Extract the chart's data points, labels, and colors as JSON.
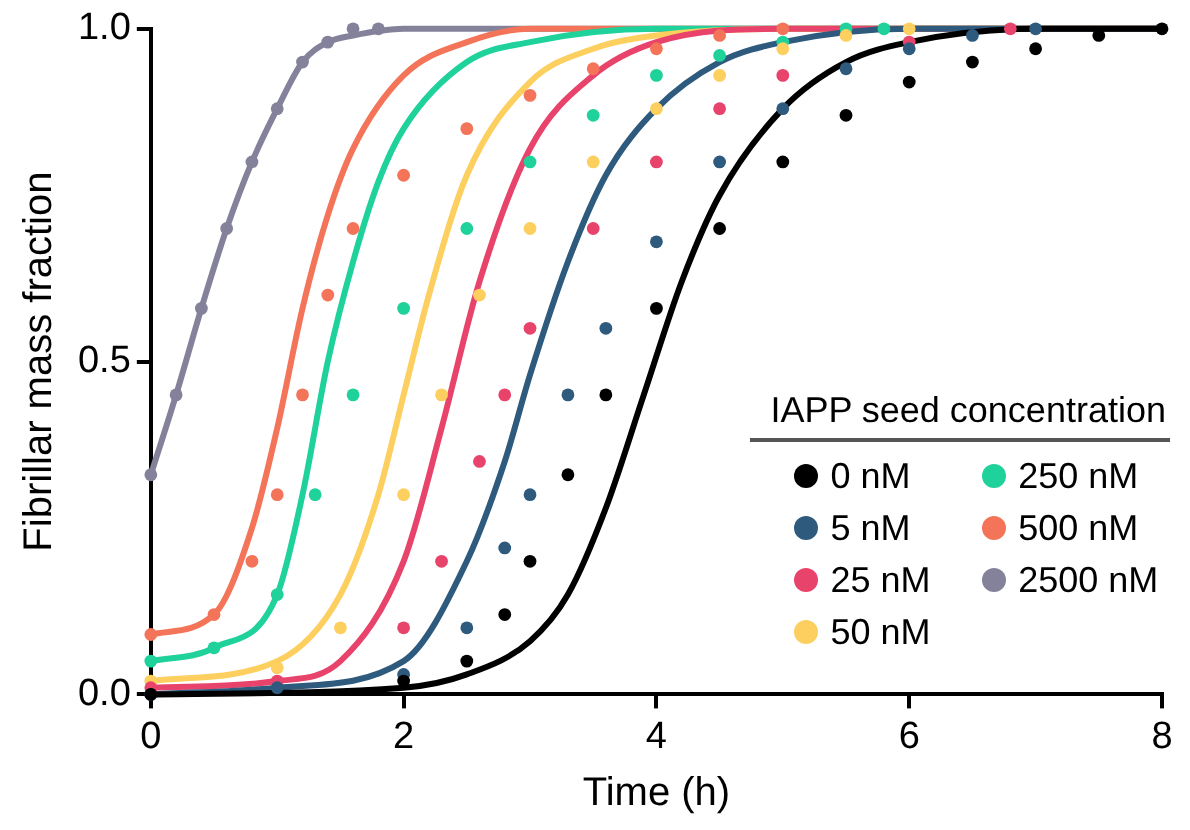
{
  "chart_data": {
    "type": "scatter",
    "xlabel": "Time (h)",
    "ylabel": "Fibrillar mass fraction",
    "legend_title": "IAPP seed concentration",
    "legend": "bottom right",
    "grid": false,
    "xlim": [
      0,
      8
    ],
    "xticks": [
      0,
      2,
      4,
      6,
      8
    ],
    "ylim": [
      0,
      1
    ],
    "yticks": [
      {
        "value": 0,
        "label": "0.0"
      },
      {
        "value": 0.5,
        "label": "0.5"
      },
      {
        "value": 1,
        "label": "1.0"
      }
    ],
    "series": [
      {
        "marker": "circle",
        "name": "0 nM",
        "color": "#000000",
        "x": [
          0,
          2,
          2.5,
          2.8,
          3,
          3.3,
          3.6,
          4,
          4.5,
          5,
          5.5,
          6,
          6.5,
          7,
          7.5,
          8
        ],
        "values": [
          0,
          0.02,
          0.05,
          0.12,
          0.2,
          0.33,
          0.45,
          0.58,
          0.7,
          0.8,
          0.87,
          0.92,
          0.95,
          0.97,
          0.99,
          1.0
        ]
      },
      {
        "marker": "circle",
        "name": "5 nM",
        "color": "#2e5a7e",
        "x": [
          0,
          1,
          2,
          2.5,
          2.8,
          3,
          3.3,
          3.6,
          4,
          4.5,
          5,
          5.5,
          6,
          6.5,
          7
        ],
        "values": [
          0,
          0.01,
          0.03,
          0.1,
          0.22,
          0.3,
          0.45,
          0.55,
          0.68,
          0.8,
          0.88,
          0.94,
          0.97,
          0.99,
          1.0
        ]
      },
      {
        "marker": "circle",
        "name": "25 nM",
        "color": "#e8436b",
        "x": [
          0,
          1,
          2,
          2.3,
          2.6,
          2.8,
          3,
          3.5,
          4,
          4.5,
          5,
          6,
          6.8
        ],
        "values": [
          0.01,
          0.02,
          0.1,
          0.2,
          0.35,
          0.45,
          0.55,
          0.7,
          0.8,
          0.88,
          0.93,
          0.98,
          1.0
        ]
      },
      {
        "marker": "circle",
        "name": "50 nM",
        "color": "#fccf5f",
        "x": [
          0,
          1,
          1.5,
          2,
          2.3,
          2.6,
          3,
          3.5,
          4,
          4.5,
          5,
          5.5,
          6
        ],
        "values": [
          0.02,
          0.04,
          0.1,
          0.3,
          0.45,
          0.6,
          0.7,
          0.8,
          0.88,
          0.93,
          0.97,
          0.99,
          1.0
        ]
      },
      {
        "marker": "circle",
        "name": "250 nM",
        "color": "#1fd19a",
        "x": [
          0,
          0.5,
          1,
          1.3,
          1.6,
          2,
          2.5,
          3,
          3.5,
          4,
          4.5,
          5,
          5.5,
          5.8
        ],
        "values": [
          0.05,
          0.07,
          0.15,
          0.3,
          0.45,
          0.58,
          0.7,
          0.8,
          0.87,
          0.93,
          0.96,
          0.98,
          1.0,
          1.0
        ]
      },
      {
        "marker": "circle",
        "name": "500 nM",
        "color": "#f37459",
        "x": [
          0,
          0.5,
          0.8,
          1,
          1.2,
          1.4,
          1.6,
          2,
          2.5,
          3,
          3.5,
          4,
          4.5,
          5
        ],
        "values": [
          0.09,
          0.12,
          0.2,
          0.3,
          0.45,
          0.6,
          0.7,
          0.78,
          0.85,
          0.9,
          0.94,
          0.97,
          0.99,
          1.0
        ]
      },
      {
        "marker": "circle",
        "name": "2500 nM",
        "color": "#83829a",
        "x": [
          0,
          0.2,
          0.4,
          0.6,
          0.8,
          1,
          1.2,
          1.4,
          1.6,
          1.8
        ],
        "values": [
          0.33,
          0.45,
          0.58,
          0.7,
          0.8,
          0.88,
          0.95,
          0.98,
          1.0,
          1.0
        ]
      },
      {
        "type": "line",
        "marker": "none",
        "color": "#000000",
        "x": [
          0,
          2,
          2.5,
          3,
          3.3,
          3.6,
          3.9,
          4.2,
          4.5,
          5,
          5.5,
          6,
          7,
          8
        ],
        "values": [
          0,
          0.01,
          0.03,
          0.08,
          0.15,
          0.28,
          0.45,
          0.62,
          0.75,
          0.88,
          0.95,
          0.98,
          1,
          1
        ]
      },
      {
        "type": "line",
        "marker": "none",
        "color": "#2e5a7e",
        "x": [
          0,
          1,
          2,
          2.5,
          2.8,
          3,
          3.3,
          3.6,
          4,
          4.5,
          5,
          6,
          8
        ],
        "values": [
          0,
          0.01,
          0.05,
          0.2,
          0.35,
          0.48,
          0.65,
          0.78,
          0.88,
          0.95,
          0.98,
          1,
          1
        ]
      },
      {
        "type": "line",
        "marker": "none",
        "color": "#e8436b",
        "x": [
          0,
          1,
          1.5,
          2,
          2.3,
          2.6,
          3,
          3.5,
          4,
          5,
          8
        ],
        "values": [
          0.01,
          0.02,
          0.05,
          0.2,
          0.4,
          0.62,
          0.82,
          0.93,
          0.98,
          1,
          1
        ]
      },
      {
        "type": "line",
        "marker": "none",
        "color": "#fccf5f",
        "x": [
          0,
          1,
          1.5,
          1.8,
          2,
          2.2,
          2.5,
          3,
          3.5,
          4,
          5,
          8
        ],
        "values": [
          0.02,
          0.05,
          0.15,
          0.3,
          0.45,
          0.6,
          0.78,
          0.92,
          0.97,
          0.99,
          1,
          1
        ]
      },
      {
        "type": "line",
        "marker": "none",
        "color": "#1fd19a",
        "x": [
          0,
          0.5,
          1,
          1.2,
          1.4,
          1.6,
          1.8,
          2,
          2.5,
          3,
          4,
          8
        ],
        "values": [
          0.05,
          0.07,
          0.15,
          0.3,
          0.5,
          0.65,
          0.77,
          0.85,
          0.95,
          0.98,
          1,
          1
        ]
      },
      {
        "type": "line",
        "marker": "none",
        "color": "#f37459",
        "x": [
          0,
          0.5,
          0.8,
          1,
          1.2,
          1.4,
          1.6,
          2,
          2.5,
          3,
          8
        ],
        "values": [
          0.09,
          0.12,
          0.25,
          0.4,
          0.58,
          0.72,
          0.82,
          0.93,
          0.98,
          1,
          1
        ]
      },
      {
        "type": "line",
        "marker": "none",
        "color": "#83829a",
        "x": [
          0,
          0.2,
          0.4,
          0.6,
          0.8,
          1,
          1.2,
          1.4,
          1.6,
          2,
          8
        ],
        "values": [
          0.33,
          0.45,
          0.58,
          0.7,
          0.8,
          0.88,
          0.95,
          0.98,
          0.99,
          1,
          1
        ]
      }
    ]
  }
}
